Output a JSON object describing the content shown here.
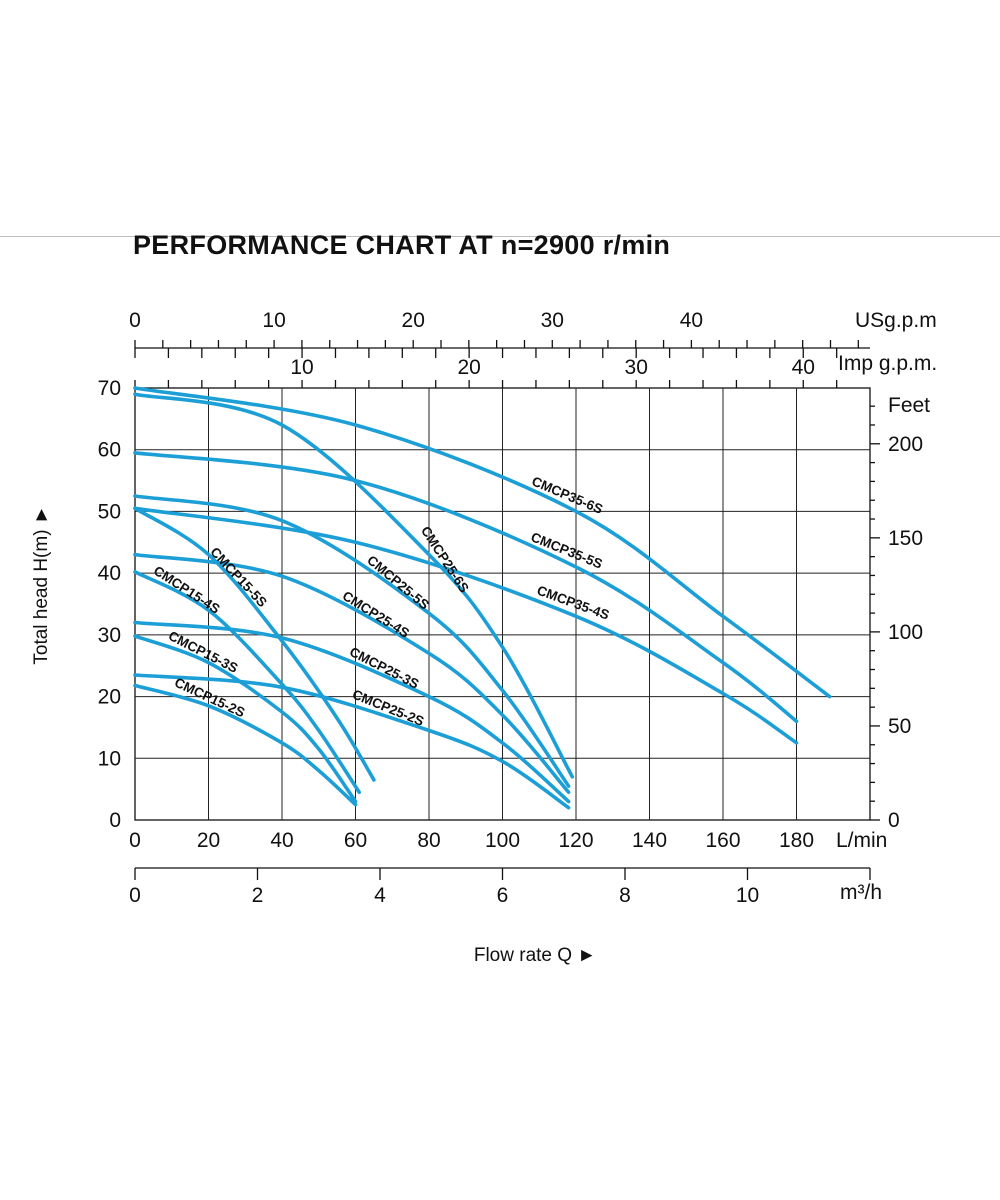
{
  "title": "PERFORMANCE CHART AT n=2900 r/min",
  "chart_data": {
    "type": "line",
    "title": "PERFORMANCE CHART AT n=2900 r/min",
    "xlabel": "Flow rate  Q ►",
    "ylabel": "Total  head H(m) ►",
    "grid": true,
    "x_unit": "L/min",
    "xlim": [
      0,
      200
    ],
    "ylim": [
      0,
      70
    ],
    "x_ticks": [
      0,
      20,
      40,
      60,
      80,
      100,
      120,
      140,
      160,
      180
    ],
    "y_ticks": [
      0,
      10,
      20,
      30,
      40,
      50,
      60,
      70
    ],
    "secondary_axes": {
      "usgpm": {
        "unit": "USg.p.m",
        "ticks": [
          0,
          10,
          20,
          30,
          40
        ]
      },
      "impgpm": {
        "unit": "Imp g.p.m.",
        "ticks": [
          10,
          20,
          30,
          40
        ]
      },
      "m3h": {
        "unit": "m³/h",
        "ticks": [
          0,
          2,
          4,
          6,
          8,
          10
        ]
      },
      "feet": {
        "unit": "Feet",
        "ticks": [
          0,
          50,
          100,
          150,
          200
        ]
      }
    },
    "series": [
      {
        "name": "CMCP15-2S",
        "x": [
          0,
          20,
          40,
          50,
          60
        ],
        "y": [
          21.8,
          18.5,
          12.5,
          8,
          2.5
        ]
      },
      {
        "name": "CMCP15-3S",
        "x": [
          0,
          20,
          40,
          50,
          60
        ],
        "y": [
          29.8,
          25.5,
          17.5,
          11.5,
          3
        ]
      },
      {
        "name": "CMCP15-4S",
        "x": [
          0,
          20,
          40,
          50,
          61
        ],
        "y": [
          40.2,
          34,
          22,
          14.5,
          4.5
        ]
      },
      {
        "name": "CMCP15-5S",
        "x": [
          0,
          20,
          40,
          55,
          65
        ],
        "y": [
          50.5,
          43,
          29,
          16.5,
          6.5
        ]
      },
      {
        "name": "CMCP25-2S",
        "x": [
          0,
          40,
          80,
          100,
          118
        ],
        "y": [
          23.5,
          21.5,
          14.5,
          9.5,
          2
        ]
      },
      {
        "name": "CMCP25-3S",
        "x": [
          0,
          40,
          80,
          100,
          118
        ],
        "y": [
          32,
          29.5,
          20,
          12.5,
          3
        ]
      },
      {
        "name": "CMCP25-4S",
        "x": [
          0,
          40,
          80,
          100,
          118
        ],
        "y": [
          43,
          39.5,
          27,
          17,
          4.5
        ]
      },
      {
        "name": "CMCP25-5S",
        "x": [
          0,
          40,
          80,
          100,
          118
        ],
        "y": [
          52.5,
          48.5,
          33.5,
          21,
          5.5
        ]
      },
      {
        "name": "CMCP25-6S",
        "x": [
          0,
          40,
          80,
          100,
          119
        ],
        "y": [
          69,
          64,
          43,
          28,
          7
        ]
      },
      {
        "name": "CMCP35-4S",
        "x": [
          0,
          60,
          120,
          160,
          180
        ],
        "y": [
          50.5,
          45,
          33,
          20.5,
          12.5
        ]
      },
      {
        "name": "CMCP35-5S",
        "x": [
          0,
          60,
          120,
          160,
          180
        ],
        "y": [
          59.5,
          55,
          41,
          25.5,
          16
        ]
      },
      {
        "name": "CMCP35-6S",
        "x": [
          0,
          60,
          120,
          160,
          189
        ],
        "y": [
          70,
          64,
          50,
          33,
          20
        ]
      }
    ]
  }
}
